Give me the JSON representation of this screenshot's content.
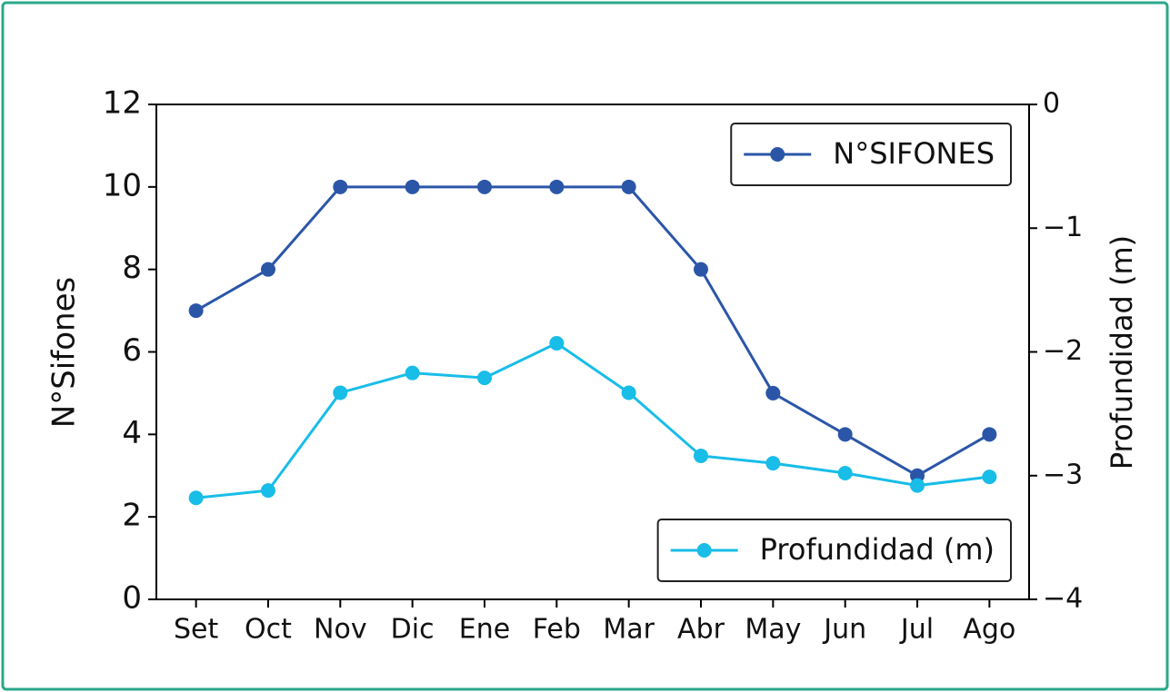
{
  "chart_data": {
    "type": "line",
    "categories": [
      "Set",
      "Oct",
      "Nov",
      "Dic",
      "Ene",
      "Feb",
      "Mar",
      "Abr",
      "May",
      "Jun",
      "Jul",
      "Ago"
    ],
    "series": [
      {
        "name": "N°SIFONES",
        "color": "#2b56a8",
        "axis": "y",
        "values": [
          7,
          8,
          10,
          10,
          10,
          10,
          10,
          8,
          5,
          4,
          3,
          4
        ]
      },
      {
        "name": "Profundidad (m)",
        "color": "#18bde8",
        "axis": "y2",
        "values": [
          -3.18,
          -3.12,
          -2.33,
          -2.17,
          -2.21,
          -1.93,
          -2.33,
          -2.84,
          -2.9,
          -2.98,
          -3.08,
          -3.01
        ]
      }
    ],
    "ylabel": "N°Sifones",
    "y2label": "Profundidad (m)",
    "ylim": [
      0,
      12
    ],
    "yticks": [
      0,
      2,
      4,
      6,
      8,
      10,
      12
    ],
    "y2lim": [
      -4,
      0
    ],
    "y2ticks": [
      {
        "value": -4,
        "label": "−4"
      },
      {
        "value": -3,
        "label": "−3"
      },
      {
        "value": -2,
        "label": "−2"
      },
      {
        "value": -1,
        "label": "−1"
      },
      0
    ],
    "legend": {
      "y": "upper right",
      "y2": "lower right"
    }
  }
}
